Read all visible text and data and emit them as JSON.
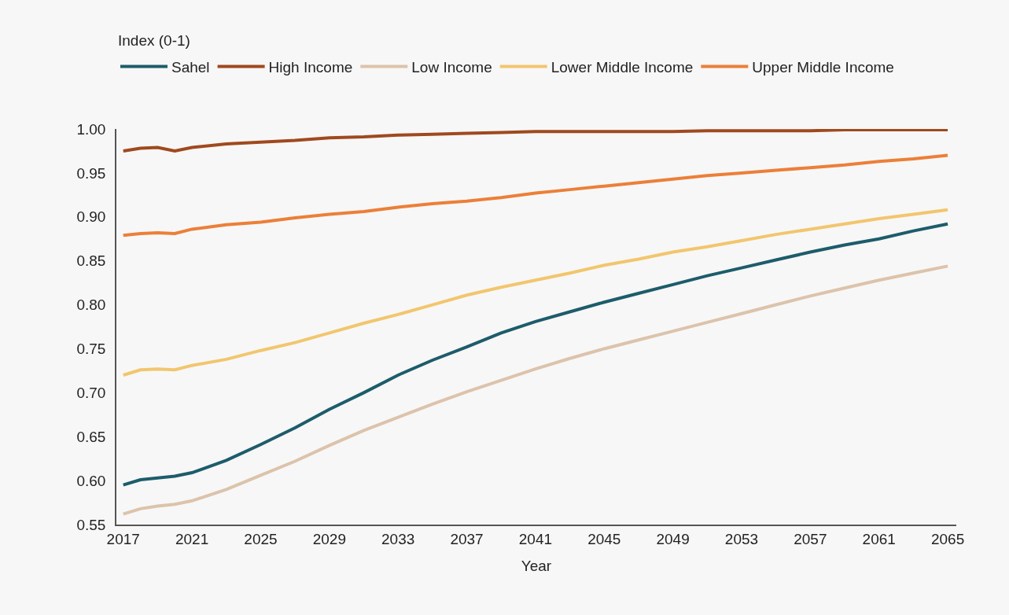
{
  "chart_data": {
    "type": "line",
    "xlabel": "Year",
    "annotations": [
      "Index (0-1)"
    ],
    "x": [
      2017,
      2018,
      2019,
      2020,
      2021,
      2023,
      2025,
      2027,
      2029,
      2031,
      2033,
      2035,
      2037,
      2039,
      2041,
      2043,
      2045,
      2047,
      2049,
      2051,
      2053,
      2055,
      2057,
      2059,
      2061,
      2063,
      2065
    ],
    "series": [
      {
        "name": "Sahel",
        "color": "#1d5c6b",
        "values": [
          0.595,
          0.601,
          0.603,
          0.605,
          0.609,
          0.623,
          0.641,
          0.66,
          0.681,
          0.7,
          0.72,
          0.737,
          0.752,
          0.768,
          0.781,
          0.792,
          0.803,
          0.813,
          0.823,
          0.833,
          0.842,
          0.851,
          0.86,
          0.868,
          0.875,
          0.884,
          0.892
        ]
      },
      {
        "name": "High Income",
        "color": "#a0491e",
        "values": [
          0.975,
          0.978,
          0.979,
          0.975,
          0.979,
          0.983,
          0.985,
          0.987,
          0.99,
          0.991,
          0.993,
          0.994,
          0.995,
          0.996,
          0.997,
          0.997,
          0.997,
          0.997,
          0.997,
          0.998,
          0.998,
          0.998,
          0.998,
          0.999,
          0.999,
          0.999,
          0.999
        ]
      },
      {
        "name": "Low Income",
        "color": "#dcc3ab",
        "values": [
          0.562,
          0.568,
          0.571,
          0.573,
          0.577,
          0.59,
          0.606,
          0.622,
          0.64,
          0.657,
          0.672,
          0.687,
          0.701,
          0.714,
          0.727,
          0.739,
          0.75,
          0.76,
          0.77,
          0.78,
          0.79,
          0.8,
          0.81,
          0.819,
          0.828,
          0.836,
          0.844
        ]
      },
      {
        "name": "Lower Middle Income",
        "color": "#f2c66e",
        "values": [
          0.72,
          0.726,
          0.727,
          0.726,
          0.731,
          0.738,
          0.748,
          0.757,
          0.768,
          0.779,
          0.789,
          0.8,
          0.811,
          0.82,
          0.828,
          0.836,
          0.845,
          0.852,
          0.86,
          0.866,
          0.873,
          0.88,
          0.886,
          0.892,
          0.898,
          0.903,
          0.908
        ]
      },
      {
        "name": "Upper Middle Income",
        "color": "#ec7f38",
        "values": [
          0.879,
          0.881,
          0.882,
          0.881,
          0.886,
          0.891,
          0.894,
          0.899,
          0.903,
          0.906,
          0.911,
          0.915,
          0.918,
          0.922,
          0.927,
          0.931,
          0.935,
          0.939,
          0.943,
          0.947,
          0.95,
          0.953,
          0.956,
          0.959,
          0.963,
          0.966,
          0.97
        ]
      }
    ],
    "xlim": [
      2016.6,
      2065.5
    ],
    "xticks": [
      2017,
      2021,
      2025,
      2029,
      2033,
      2037,
      2041,
      2045,
      2049,
      2053,
      2057,
      2061,
      2065
    ],
    "ylim": [
      0.55,
      1.0
    ],
    "yticks": [
      {
        "value": 0.55,
        "label": "0.55"
      },
      {
        "value": 0.6,
        "label": "0.60"
      },
      {
        "value": 0.65,
        "label": "0.65"
      },
      {
        "value": 0.7,
        "label": "0.70"
      },
      {
        "value": 0.75,
        "label": "0.75"
      },
      {
        "value": 0.8,
        "label": "0.80"
      },
      {
        "value": 0.85,
        "label": "0.85"
      },
      {
        "value": 0.9,
        "label": "0.90"
      },
      {
        "value": 0.95,
        "label": "0.95"
      },
      {
        "value": 1.0,
        "label": "1.00"
      }
    ],
    "grid": false,
    "legend": "top left",
    "marker": "none",
    "line_style": "solid"
  }
}
